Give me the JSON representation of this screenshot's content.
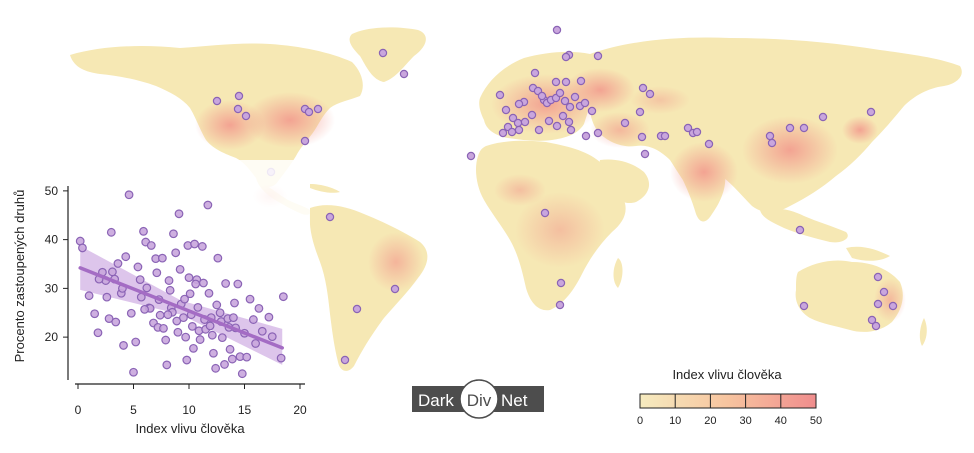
{
  "colors": {
    "land_low": "#f6e8b4",
    "land_mid": "#f7c99c",
    "land_high": "#f29a8e",
    "marker_fill": "#c9a6dd",
    "marker_stroke": "#8a63b5",
    "trend_line": "#a46cc4",
    "trend_band": "#d2b1e4",
    "logo_bg": "#4d4d4d"
  },
  "logo": {
    "left": "Dark",
    "middle": "Div",
    "right": "Net"
  },
  "legend": {
    "title": "Index vlivu člověka",
    "ticks": [
      "0",
      "10",
      "20",
      "30",
      "40",
      "50"
    ]
  },
  "chart_data": {
    "type": "scatter",
    "xlabel": "Index vlivu člověka",
    "ylabel": "Procento zastoupených druhů",
    "xlim": [
      0,
      20
    ],
    "ylim": [
      11,
      51
    ],
    "x_ticks": [
      "0",
      "5",
      "10",
      "15",
      "20"
    ],
    "y_ticks": [
      "20",
      "30",
      "40",
      "50"
    ],
    "points": [
      [
        0.2,
        39.7
      ],
      [
        0.4,
        38.3
      ],
      [
        1.0,
        28.5
      ],
      [
        1.5,
        24.8
      ],
      [
        1.8,
        20.9
      ],
      [
        2.2,
        33.3
      ],
      [
        2.5,
        31.6
      ],
      [
        2.6,
        28.2
      ],
      [
        2.8,
        23.8
      ],
      [
        3.0,
        41.5
      ],
      [
        3.1,
        33.4
      ],
      [
        3.3,
        31.9
      ],
      [
        3.6,
        35.1
      ],
      [
        3.9,
        29.0
      ],
      [
        4.1,
        18.3
      ],
      [
        4.3,
        36.5
      ],
      [
        4.6,
        49.2
      ],
      [
        4.8,
        24.9
      ],
      [
        5.0,
        12.8
      ],
      [
        5.2,
        19.0
      ],
      [
        5.4,
        34.4
      ],
      [
        5.6,
        31.8
      ],
      [
        5.7,
        28.2
      ],
      [
        5.9,
        41.7
      ],
      [
        6.1,
        39.5
      ],
      [
        6.2,
        30.1
      ],
      [
        6.4,
        26.0
      ],
      [
        6.5,
        25.9
      ],
      [
        6.6,
        38.8
      ],
      [
        6.8,
        22.9
      ],
      [
        7.0,
        36.1
      ],
      [
        7.1,
        33.2
      ],
      [
        7.2,
        22.0
      ],
      [
        7.3,
        27.7
      ],
      [
        7.4,
        24.5
      ],
      [
        7.6,
        36.2
      ],
      [
        7.7,
        21.8
      ],
      [
        7.9,
        19.4
      ],
      [
        8.0,
        14.3
      ],
      [
        8.2,
        31.6
      ],
      [
        8.3,
        29.6
      ],
      [
        8.4,
        26.0
      ],
      [
        8.5,
        25.1
      ],
      [
        8.6,
        41.2
      ],
      [
        8.8,
        37.3
      ],
      [
        8.9,
        23.3
      ],
      [
        9.0,
        21.0
      ],
      [
        9.1,
        45.3
      ],
      [
        9.2,
        33.9
      ],
      [
        9.3,
        26.8
      ],
      [
        9.5,
        24.0
      ],
      [
        9.7,
        20.0
      ],
      [
        9.8,
        15.3
      ],
      [
        9.9,
        38.8
      ],
      [
        10.0,
        32.2
      ],
      [
        10.1,
        28.9
      ],
      [
        10.2,
        24.6
      ],
      [
        10.3,
        22.2
      ],
      [
        10.4,
        17.7
      ],
      [
        10.5,
        39.1
      ],
      [
        10.7,
        31.8
      ],
      [
        10.8,
        26.1
      ],
      [
        10.9,
        21.3
      ],
      [
        11.0,
        19.5
      ],
      [
        11.2,
        38.6
      ],
      [
        11.3,
        31.1
      ],
      [
        11.4,
        23.6
      ],
      [
        11.5,
        21.6
      ],
      [
        11.7,
        47.1
      ],
      [
        11.8,
        29.0
      ],
      [
        12.0,
        24.0
      ],
      [
        12.1,
        20.4
      ],
      [
        12.2,
        16.7
      ],
      [
        12.4,
        13.6
      ],
      [
        12.6,
        36.2
      ],
      [
        12.8,
        25.0
      ],
      [
        12.9,
        23.2
      ],
      [
        13.0,
        19.9
      ],
      [
        13.2,
        14.4
      ],
      [
        13.3,
        31.0
      ],
      [
        13.5,
        23.8
      ],
      [
        13.6,
        22.0
      ],
      [
        13.7,
        17.5
      ],
      [
        13.9,
        15.5
      ],
      [
        14.0,
        24.0
      ],
      [
        14.2,
        21.9
      ],
      [
        14.4,
        30.9
      ],
      [
        14.6,
        16.0
      ],
      [
        14.8,
        12.5
      ],
      [
        15.0,
        20.8
      ],
      [
        15.2,
        15.9
      ],
      [
        15.5,
        27.8
      ],
      [
        15.8,
        23.6
      ],
      [
        16.0,
        18.7
      ],
      [
        16.3,
        25.9
      ],
      [
        16.6,
        21.2
      ],
      [
        17.2,
        24.1
      ],
      [
        17.5,
        20.1
      ],
      [
        18.3,
        15.7
      ],
      [
        18.5,
        28.3
      ],
      [
        1.9,
        31.9
      ],
      [
        3.4,
        23.1
      ],
      [
        6.0,
        25.7
      ],
      [
        8.1,
        24.6
      ],
      [
        9.6,
        27.8
      ],
      [
        11.9,
        22.3
      ],
      [
        12.5,
        26.6
      ],
      [
        14.1,
        27.0
      ],
      [
        4.0,
        30.0
      ],
      [
        10.6,
        30.9
      ]
    ],
    "trend": {
      "x": [
        0.2,
        18.4
      ],
      "y": [
        34.2,
        17.8
      ]
    },
    "band": {
      "x": [
        0.2,
        9.3,
        18.4
      ],
      "lower": [
        29.7,
        24.6,
        14.3
      ],
      "upper": [
        38.7,
        27.5,
        21.7
      ]
    }
  },
  "map_sites": [
    [
      557,
      30
    ],
    [
      383,
      53
    ],
    [
      404,
      74
    ],
    [
      569,
      55
    ],
    [
      566,
      57
    ],
    [
      598,
      56
    ],
    [
      217,
      101
    ],
    [
      239,
      96
    ],
    [
      246,
      116
    ],
    [
      238,
      109
    ],
    [
      305,
      109
    ],
    [
      318,
      109
    ],
    [
      309,
      112
    ],
    [
      305,
      141
    ],
    [
      271,
      172
    ],
    [
      535,
      73
    ],
    [
      556,
      82
    ],
    [
      566,
      82
    ],
    [
      581,
      81
    ],
    [
      544,
      100
    ],
    [
      524,
      102
    ],
    [
      519,
      104
    ],
    [
      533,
      88
    ],
    [
      538,
      91
    ],
    [
      542,
      96
    ],
    [
      547,
      103
    ],
    [
      551,
      100
    ],
    [
      556,
      98
    ],
    [
      560,
      93
    ],
    [
      565,
      101
    ],
    [
      570,
      107
    ],
    [
      575,
      97
    ],
    [
      580,
      106
    ],
    [
      585,
      103
    ],
    [
      592,
      111
    ],
    [
      500,
      95
    ],
    [
      506,
      110
    ],
    [
      513,
      118
    ],
    [
      518,
      123
    ],
    [
      508,
      127
    ],
    [
      503,
      133
    ],
    [
      512,
      132
    ],
    [
      519,
      130
    ],
    [
      525,
      122
    ],
    [
      532,
      115
    ],
    [
      539,
      130
    ],
    [
      549,
      121
    ],
    [
      557,
      126
    ],
    [
      563,
      116
    ],
    [
      569,
      122
    ],
    [
      571,
      130
    ],
    [
      586,
      136
    ],
    [
      598,
      133
    ],
    [
      625,
      123
    ],
    [
      640,
      112
    ],
    [
      643,
      88
    ],
    [
      650,
      94
    ],
    [
      642,
      137
    ],
    [
      661,
      136
    ],
    [
      665,
      136
    ],
    [
      645,
      154
    ],
    [
      688,
      128
    ],
    [
      693,
      133
    ],
    [
      697,
      132
    ],
    [
      709,
      144
    ],
    [
      770,
      136
    ],
    [
      772,
      143
    ],
    [
      790,
      128
    ],
    [
      804,
      128
    ],
    [
      823,
      117
    ],
    [
      871,
      112
    ],
    [
      545,
      213
    ],
    [
      561,
      283
    ],
    [
      560,
      305
    ],
    [
      330,
      217
    ],
    [
      395,
      289
    ],
    [
      357,
      309
    ],
    [
      345,
      360
    ],
    [
      471,
      156
    ],
    [
      800,
      230
    ],
    [
      804,
      306
    ],
    [
      878,
      277
    ],
    [
      884,
      292
    ],
    [
      878,
      304
    ],
    [
      893,
      306
    ],
    [
      872,
      320
    ],
    [
      876,
      326
    ]
  ]
}
